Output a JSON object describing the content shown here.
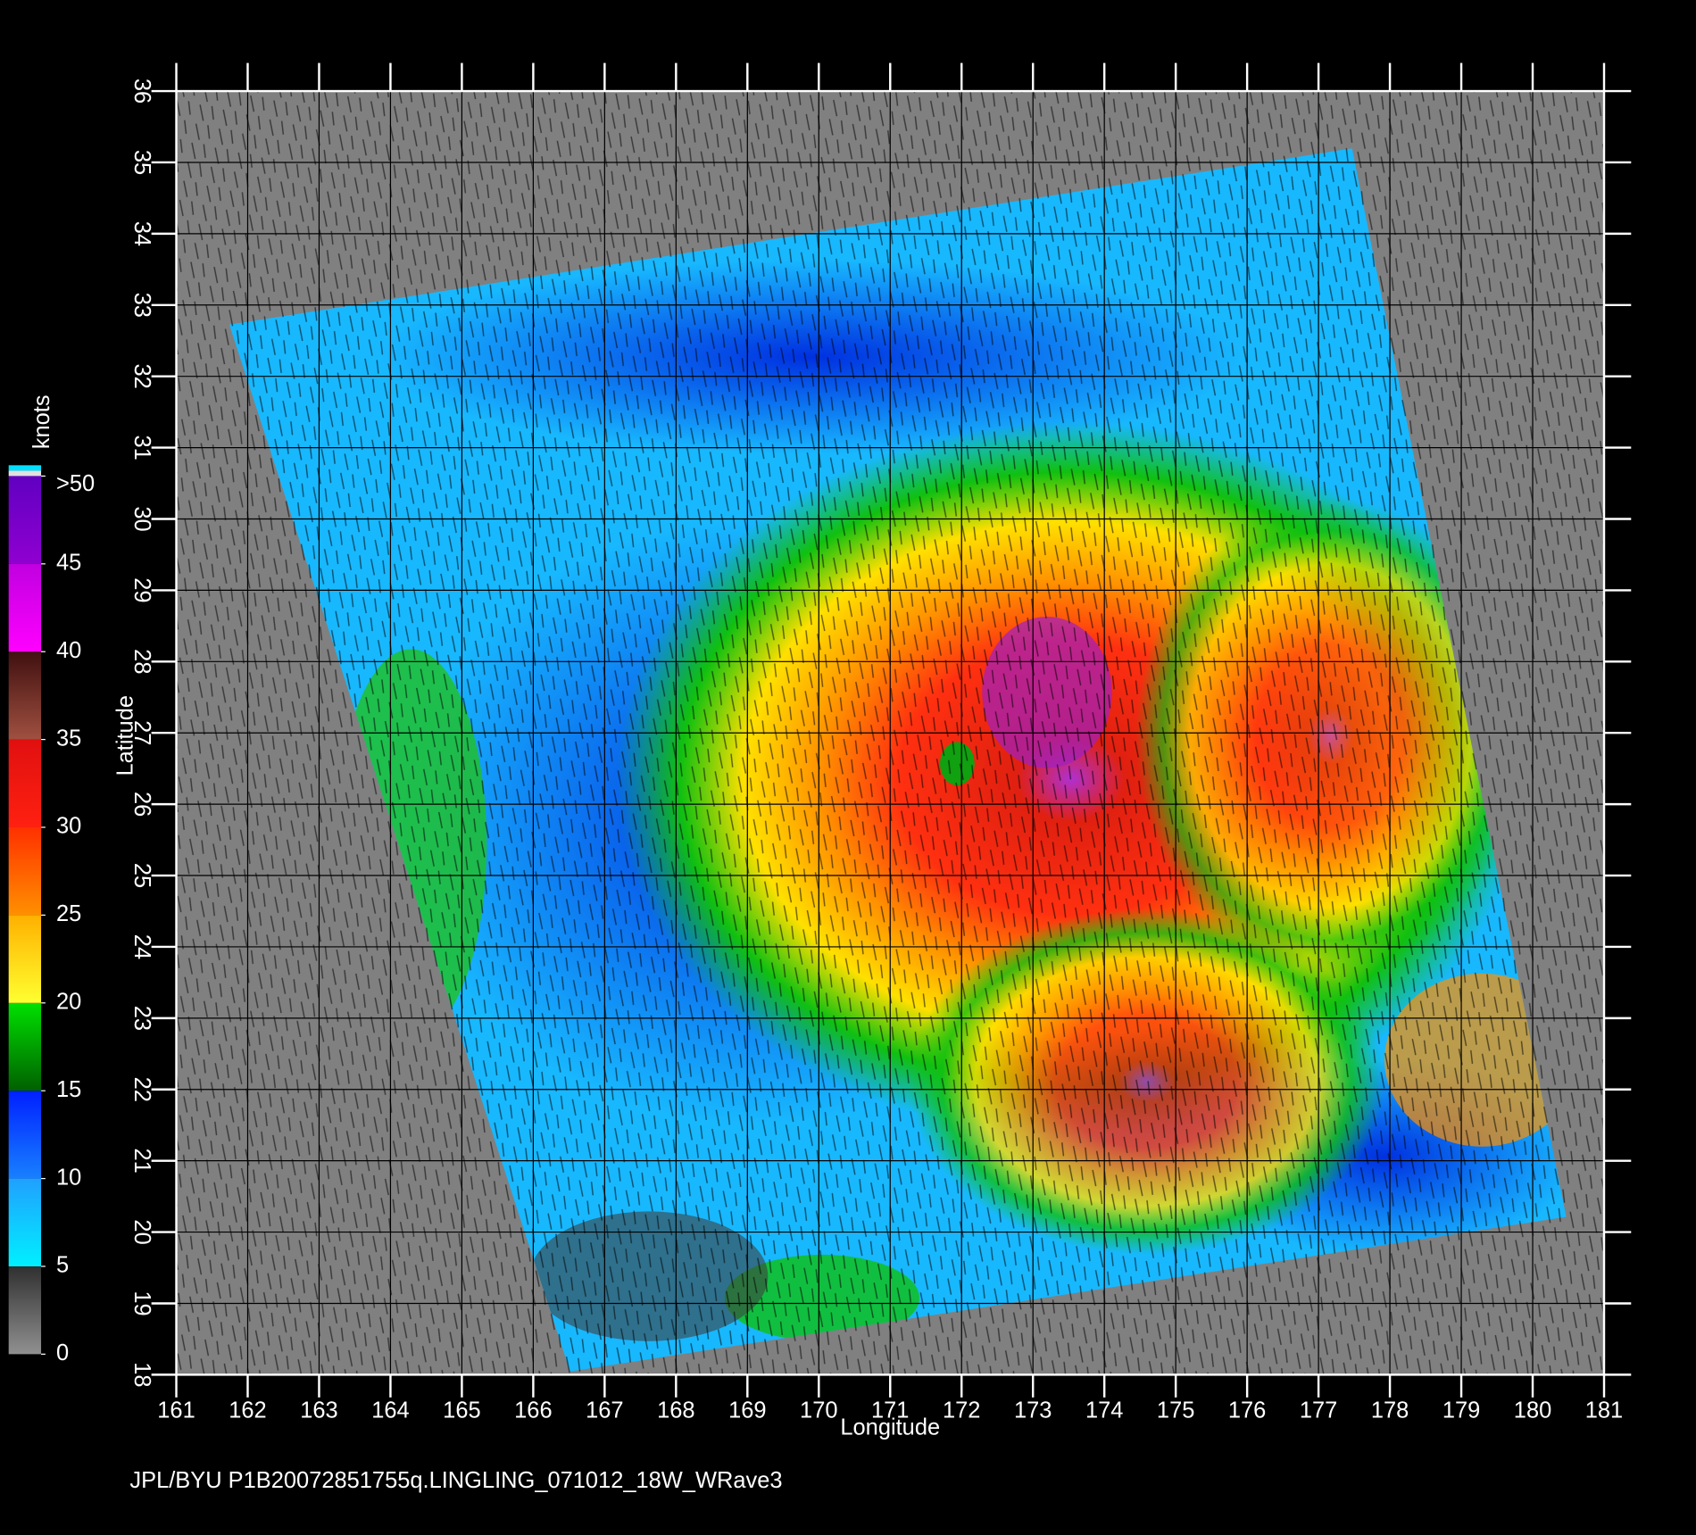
{
  "map": {
    "xlabel": "Longitude",
    "ylabel": "Latitude",
    "xlim": [
      161,
      181
    ],
    "ylim": [
      18,
      36
    ],
    "xticks": [
      161,
      162,
      163,
      164,
      165,
      166,
      167,
      168,
      169,
      170,
      171,
      172,
      173,
      174,
      175,
      176,
      177,
      178,
      179,
      180,
      181
    ],
    "yticks": [
      18,
      19,
      20,
      21,
      22,
      23,
      24,
      25,
      26,
      27,
      28,
      29,
      30,
      31,
      32,
      33,
      34,
      35,
      36
    ]
  },
  "colorbar": {
    "title": "knots",
    "clim": [
      0,
      50
    ],
    "ticks": [
      0,
      5,
      10,
      15,
      20,
      25,
      30,
      35,
      40,
      45,
      {
        "value": 50,
        "label": ">50"
      }
    ]
  },
  "footer": "JPL/BYU  P1B20072851755q.LINGLING_071012_18W_WRave3"
}
